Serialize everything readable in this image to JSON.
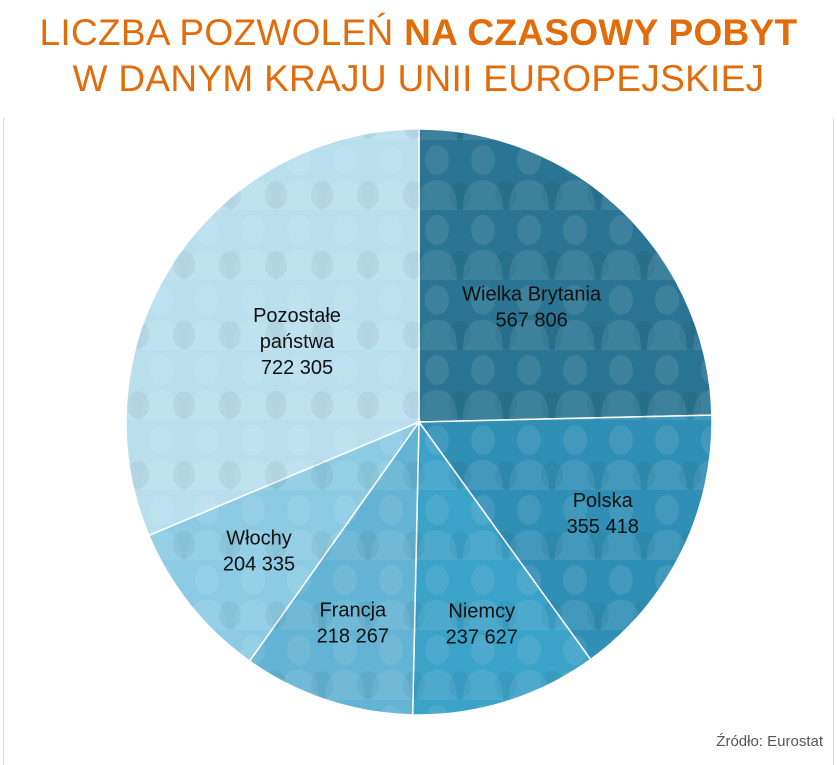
{
  "title": {
    "line1_regular": "LICZBA POZWOLEŃ ",
    "line1_bold": "NA CZASOWY POBYT",
    "line2": "W DANYM KRAJU UNII EUROPEJSKIEJ",
    "color": "#e36c0a"
  },
  "source": "Źródło: Eurostat",
  "chart_data": {
    "type": "pie",
    "start": "12 o'clock",
    "direction": "clockwise",
    "legend": "none",
    "slices": [
      {
        "label_lines": [
          "Wielka Brytania"
        ],
        "value": 567806,
        "value_label": "567 806",
        "color": "#2a7593"
      },
      {
        "label_lines": [
          "Polska"
        ],
        "value": 355418,
        "value_label": "355 418",
        "color": "#2f8fb5"
      },
      {
        "label_lines": [
          "Niemcy"
        ],
        "value": 237627,
        "value_label": "237 627",
        "color": "#3ba2c8"
      },
      {
        "label_lines": [
          "Francja"
        ],
        "value": 218267,
        "value_label": "218 267",
        "color": "#62b3d4"
      },
      {
        "label_lines": [
          "Włochy"
        ],
        "value": 204335,
        "value_label": "204 335",
        "color": "#8ccbe3"
      },
      {
        "label_lines": [
          "Pozostałe",
          "państwa"
        ],
        "value": 722305,
        "value_label": "722 305",
        "color": "#b9dfee"
      }
    ]
  }
}
